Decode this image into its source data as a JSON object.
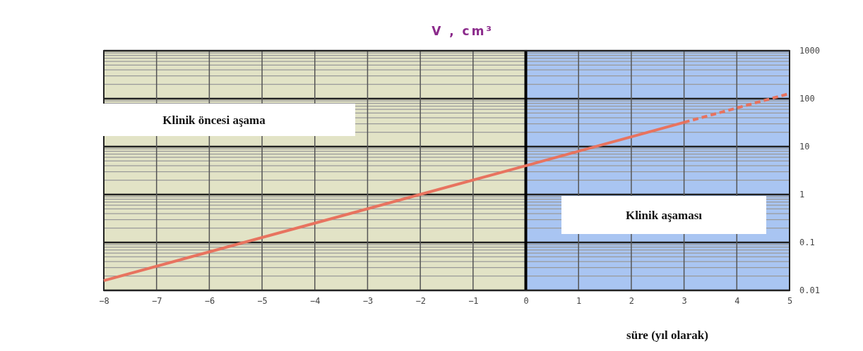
{
  "chart_data": {
    "type": "line",
    "ylabel": "V , cm³",
    "xlabel": "süre (yıl olarak)",
    "series": [
      {
        "color": "#e8735f",
        "x": [
          -8,
          0,
          3
        ],
        "values": [
          0.016,
          4,
          32
        ],
        "line_style": "solid"
      },
      {
        "color": "#e8735f",
        "x": [
          3,
          5
        ],
        "values": [
          32,
          128
        ],
        "line_style": "dashed"
      }
    ],
    "log": "y",
    "xlim": [
      -8,
      5
    ],
    "xticks": [
      -8,
      -7,
      -6,
      -5,
      -4,
      -3,
      -2,
      -1,
      0,
      1,
      2,
      3,
      4,
      5
    ],
    "ylim": [
      0.01,
      1000
    ],
    "yticks": [
      0.01,
      0.1,
      1,
      10,
      100,
      1000
    ],
    "grid": true,
    "bands": [
      {
        "axis": "x",
        "from": -8,
        "to": 0,
        "color": "#e2e3c6"
      },
      {
        "axis": "x",
        "from": 0,
        "to": 5,
        "color": "#a9c5f2"
      }
    ],
    "ref_lines": [
      {
        "axis": "x",
        "value": 0,
        "color": "#000000"
      }
    ],
    "annotations": [
      "Klinik öncesi aşama",
      "Klinik aşaması"
    ]
  }
}
